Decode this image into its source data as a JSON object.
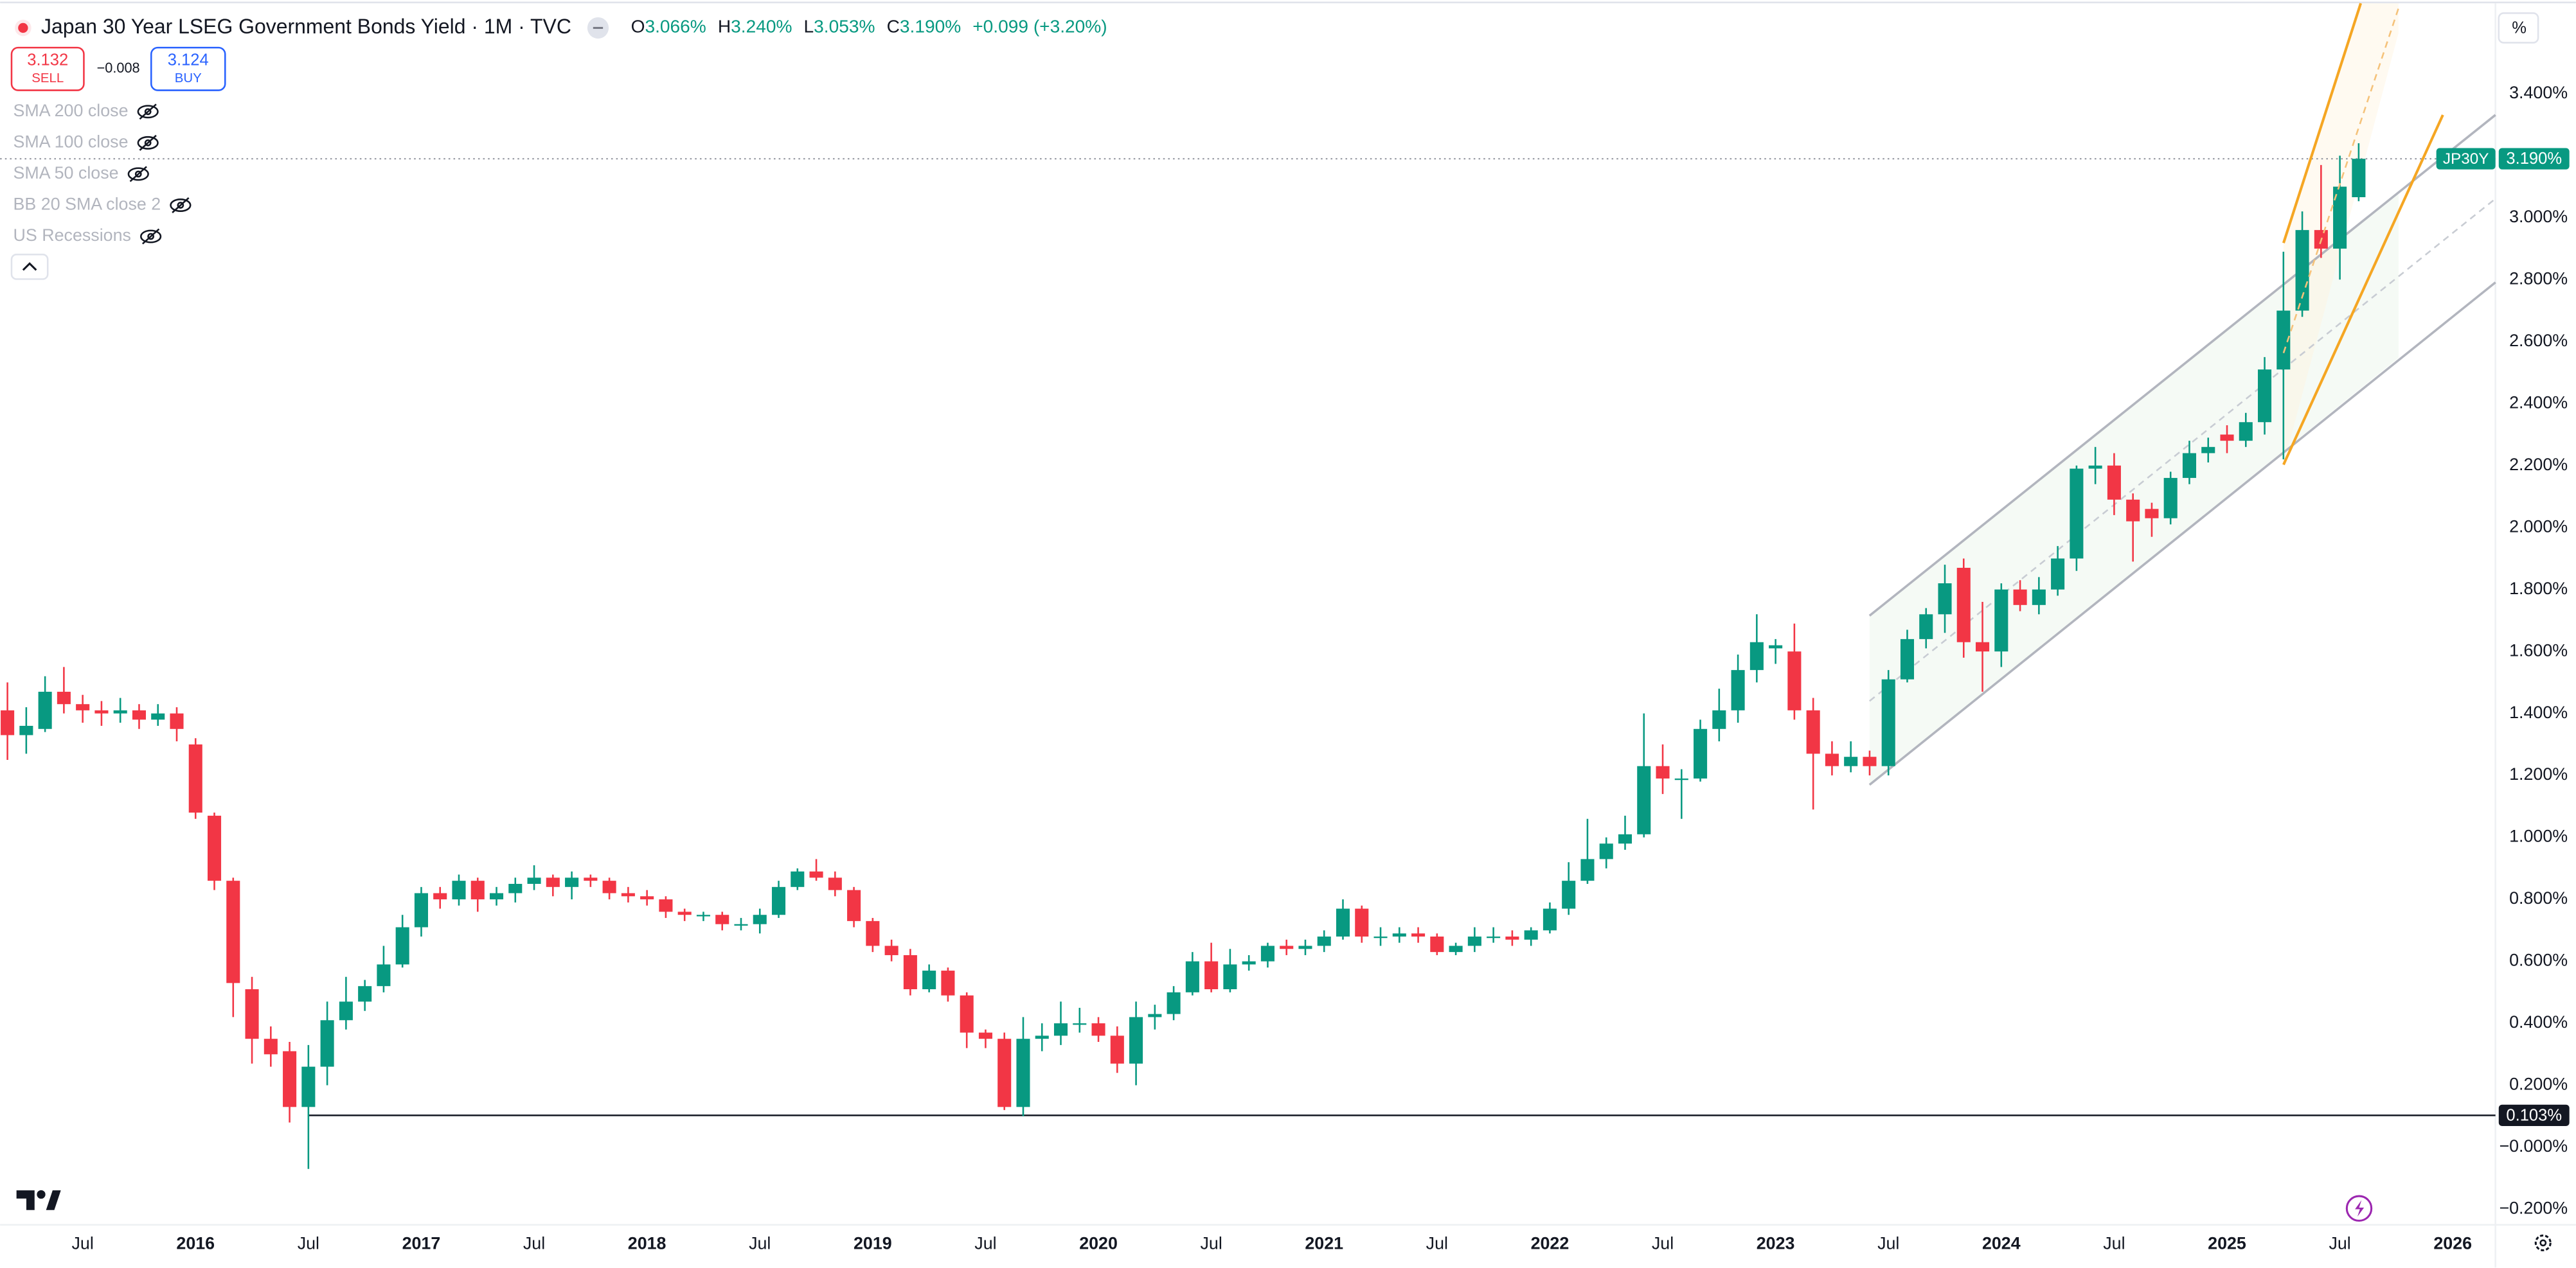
{
  "header": {
    "title": "Japan 30 Year LSEG Government Bonds Yield · 1M · TVC",
    "ohlc": [
      {
        "key": "O",
        "value": "3.066%"
      },
      {
        "key": "H",
        "value": "3.240%"
      },
      {
        "key": "L",
        "value": "3.053%"
      },
      {
        "key": "C",
        "value": "3.190%"
      }
    ],
    "change": "+0.099 (+3.20%)",
    "sell": {
      "price": "3.132",
      "label": "SELL"
    },
    "spread": "−0.008",
    "buy": {
      "price": "3.124",
      "label": "BUY"
    },
    "indicators": [
      "SMA 200 close",
      "SMA 100 close",
      "SMA 50 close",
      "BB 20 SMA close 2",
      "US Recessions"
    ]
  },
  "chart_data": {
    "type": "candlestick",
    "symbol": "JP30Y",
    "y_unit": "%",
    "up_color": "#089981",
    "down_color": "#f23645",
    "grid": false,
    "x": [
      "2015-03",
      "2015-04",
      "2015-05",
      "2015-06",
      "2015-07",
      "2015-08",
      "2015-09",
      "2015-10",
      "2015-11",
      "2015-12",
      "2016-01",
      "2016-02",
      "2016-03",
      "2016-04",
      "2016-05",
      "2016-06",
      "2016-07",
      "2016-08",
      "2016-09",
      "2016-10",
      "2016-11",
      "2016-12",
      "2017-01",
      "2017-02",
      "2017-03",
      "2017-04",
      "2017-05",
      "2017-06",
      "2017-07",
      "2017-08",
      "2017-09",
      "2017-10",
      "2017-11",
      "2017-12",
      "2018-01",
      "2018-02",
      "2018-03",
      "2018-04",
      "2018-05",
      "2018-06",
      "2018-07",
      "2018-08",
      "2018-09",
      "2018-10",
      "2018-11",
      "2018-12",
      "2019-01",
      "2019-02",
      "2019-03",
      "2019-04",
      "2019-05",
      "2019-06",
      "2019-07",
      "2019-08",
      "2019-09",
      "2019-10",
      "2019-11",
      "2019-12",
      "2020-01",
      "2020-02",
      "2020-03",
      "2020-04",
      "2020-05",
      "2020-06",
      "2020-07",
      "2020-08",
      "2020-09",
      "2020-10",
      "2020-11",
      "2020-12",
      "2021-01",
      "2021-02",
      "2021-03",
      "2021-04",
      "2021-05",
      "2021-06",
      "2021-07",
      "2021-08",
      "2021-09",
      "2021-10",
      "2021-11",
      "2021-12",
      "2022-01",
      "2022-02",
      "2022-03",
      "2022-04",
      "2022-05",
      "2022-06",
      "2022-07",
      "2022-08",
      "2022-09",
      "2022-10",
      "2022-11",
      "2022-12",
      "2023-01",
      "2023-02",
      "2023-03",
      "2023-04",
      "2023-05",
      "2023-06",
      "2023-07",
      "2023-08",
      "2023-09",
      "2023-10",
      "2023-11",
      "2023-12",
      "2024-01",
      "2024-02",
      "2024-03",
      "2024-04",
      "2024-05",
      "2024-06",
      "2024-07",
      "2024-08",
      "2024-09",
      "2024-10",
      "2024-11",
      "2024-12",
      "2025-01",
      "2025-02",
      "2025-03",
      "2025-04",
      "2025-05",
      "2025-06",
      "2025-07",
      "2025-08"
    ],
    "open": [
      1.41,
      1.33,
      1.35,
      1.47,
      1.43,
      1.41,
      1.4,
      1.41,
      1.38,
      1.4,
      1.3,
      1.07,
      0.86,
      0.51,
      0.35,
      0.31,
      0.13,
      0.26,
      0.41,
      0.47,
      0.52,
      0.59,
      0.71,
      0.82,
      0.8,
      0.86,
      0.8,
      0.82,
      0.85,
      0.87,
      0.84,
      0.87,
      0.86,
      0.82,
      0.81,
      0.8,
      0.76,
      0.75,
      0.75,
      0.72,
      0.72,
      0.75,
      0.84,
      0.89,
      0.87,
      0.83,
      0.73,
      0.65,
      0.62,
      0.51,
      0.57,
      0.49,
      0.37,
      0.35,
      0.13,
      0.35,
      0.36,
      0.4,
      0.4,
      0.36,
      0.27,
      0.42,
      0.43,
      0.5,
      0.6,
      0.51,
      0.59,
      0.6,
      0.65,
      0.64,
      0.65,
      0.68,
      0.77,
      0.68,
      0.68,
      0.69,
      0.68,
      0.63,
      0.65,
      0.68,
      0.68,
      0.67,
      0.7,
      0.77,
      0.86,
      0.93,
      0.98,
      1.01,
      1.23,
      1.19,
      1.19,
      1.35,
      1.41,
      1.54,
      1.61,
      1.6,
      1.41,
      1.27,
      1.23,
      1.26,
      1.23,
      1.51,
      1.64,
      1.72,
      1.87,
      1.63,
      1.6,
      1.8,
      1.75,
      1.8,
      1.9,
      2.19,
      2.2,
      2.09,
      2.06,
      2.03,
      2.16,
      2.24,
      2.3,
      2.28,
      2.34,
      2.51,
      2.7,
      2.96,
      2.9,
      3.066
    ],
    "high": [
      1.5,
      1.42,
      1.52,
      1.55,
      1.46,
      1.44,
      1.45,
      1.43,
      1.43,
      1.42,
      1.32,
      1.08,
      0.87,
      0.55,
      0.39,
      0.34,
      0.33,
      0.47,
      0.55,
      0.54,
      0.65,
      0.75,
      0.84,
      0.84,
      0.88,
      0.87,
      0.84,
      0.87,
      0.91,
      0.88,
      0.89,
      0.88,
      0.87,
      0.84,
      0.83,
      0.81,
      0.77,
      0.76,
      0.76,
      0.74,
      0.77,
      0.86,
      0.9,
      0.93,
      0.89,
      0.84,
      0.74,
      0.67,
      0.64,
      0.59,
      0.58,
      0.5,
      0.38,
      0.37,
      0.42,
      0.4,
      0.47,
      0.45,
      0.42,
      0.39,
      0.47,
      0.46,
      0.52,
      0.63,
      0.66,
      0.64,
      0.62,
      0.66,
      0.67,
      0.67,
      0.7,
      0.8,
      0.78,
      0.71,
      0.71,
      0.71,
      0.69,
      0.66,
      0.71,
      0.71,
      0.7,
      0.71,
      0.79,
      0.92,
      1.06,
      1.0,
      1.07,
      1.4,
      1.3,
      1.22,
      1.38,
      1.48,
      1.59,
      1.72,
      1.64,
      1.69,
      1.45,
      1.31,
      1.31,
      1.28,
      1.54,
      1.67,
      1.74,
      1.88,
      1.9,
      1.76,
      1.82,
      1.83,
      1.84,
      1.94,
      2.2,
      2.26,
      2.24,
      2.11,
      2.08,
      2.18,
      2.28,
      2.29,
      2.33,
      2.37,
      2.55,
      2.89,
      3.02,
      3.17,
      3.2,
      3.24
    ],
    "low": [
      1.25,
      1.27,
      1.34,
      1.4,
      1.37,
      1.36,
      1.37,
      1.35,
      1.36,
      1.31,
      1.06,
      0.83,
      0.42,
      0.27,
      0.26,
      0.08,
      -0.07,
      0.2,
      0.38,
      0.44,
      0.5,
      0.58,
      0.68,
      0.77,
      0.78,
      0.76,
      0.78,
      0.79,
      0.83,
      0.81,
      0.8,
      0.84,
      0.8,
      0.79,
      0.78,
      0.74,
      0.73,
      0.73,
      0.7,
      0.7,
      0.69,
      0.74,
      0.83,
      0.86,
      0.81,
      0.71,
      0.63,
      0.6,
      0.49,
      0.5,
      0.47,
      0.32,
      0.32,
      0.12,
      0.1,
      0.31,
      0.33,
      0.37,
      0.34,
      0.24,
      0.2,
      0.38,
      0.41,
      0.49,
      0.5,
      0.5,
      0.57,
      0.58,
      0.62,
      0.62,
      0.63,
      0.67,
      0.66,
      0.65,
      0.66,
      0.66,
      0.62,
      0.62,
      0.63,
      0.66,
      0.65,
      0.65,
      0.69,
      0.75,
      0.85,
      0.9,
      0.96,
      1.0,
      1.14,
      1.06,
      1.18,
      1.31,
      1.37,
      1.5,
      1.56,
      1.38,
      1.09,
      1.2,
      1.21,
      1.2,
      1.2,
      1.5,
      1.61,
      1.66,
      1.58,
      1.47,
      1.55,
      1.73,
      1.72,
      1.78,
      1.86,
      2.14,
      2.04,
      1.89,
      1.97,
      2.01,
      2.14,
      2.21,
      2.24,
      2.26,
      2.3,
      2.22,
      2.68,
      2.87,
      2.8,
      3.053
    ],
    "close": [
      1.33,
      1.36,
      1.47,
      1.43,
      1.41,
      1.4,
      1.41,
      1.38,
      1.4,
      1.35,
      1.08,
      0.86,
      0.53,
      0.35,
      0.3,
      0.13,
      0.26,
      0.41,
      0.47,
      0.52,
      0.59,
      0.71,
      0.82,
      0.8,
      0.86,
      0.8,
      0.82,
      0.85,
      0.87,
      0.84,
      0.87,
      0.86,
      0.82,
      0.81,
      0.8,
      0.76,
      0.75,
      0.75,
      0.72,
      0.72,
      0.75,
      0.84,
      0.89,
      0.87,
      0.83,
      0.73,
      0.65,
      0.62,
      0.51,
      0.57,
      0.49,
      0.37,
      0.35,
      0.13,
      0.35,
      0.36,
      0.4,
      0.4,
      0.36,
      0.27,
      0.42,
      0.43,
      0.5,
      0.6,
      0.51,
      0.59,
      0.6,
      0.65,
      0.64,
      0.65,
      0.68,
      0.77,
      0.68,
      0.68,
      0.69,
      0.68,
      0.63,
      0.65,
      0.68,
      0.68,
      0.67,
      0.7,
      0.77,
      0.86,
      0.93,
      0.98,
      1.01,
      1.23,
      1.19,
      1.19,
      1.35,
      1.41,
      1.54,
      1.63,
      1.62,
      1.41,
      1.27,
      1.23,
      1.26,
      1.23,
      1.51,
      1.64,
      1.72,
      1.82,
      1.63,
      1.6,
      1.8,
      1.75,
      1.8,
      1.9,
      2.19,
      2.2,
      2.09,
      2.02,
      2.03,
      2.16,
      2.24,
      2.26,
      2.28,
      2.34,
      2.51,
      2.7,
      2.96,
      2.9,
      3.1,
      3.19
    ],
    "xlim": [
      "2015-03",
      "2026-03"
    ],
    "ylim": [
      -0.245,
      3.66
    ],
    "xticks": [
      {
        "value": "2015-07",
        "label": "Jul"
      },
      {
        "value": "2016-01",
        "label": "2016"
      },
      {
        "value": "2016-07",
        "label": "Jul"
      },
      {
        "value": "2017-01",
        "label": "2017"
      },
      {
        "value": "2017-07",
        "label": "Jul"
      },
      {
        "value": "2018-01",
        "label": "2018"
      },
      {
        "value": "2018-07",
        "label": "Jul"
      },
      {
        "value": "2019-01",
        "label": "2019"
      },
      {
        "value": "2019-07",
        "label": "Jul"
      },
      {
        "value": "2020-01",
        "label": "2020"
      },
      {
        "value": "2020-07",
        "label": "Jul"
      },
      {
        "value": "2021-01",
        "label": "2021"
      },
      {
        "value": "2021-07",
        "label": "Jul"
      },
      {
        "value": "2022-01",
        "label": "2022"
      },
      {
        "value": "2022-07",
        "label": "Jul"
      },
      {
        "value": "2023-01",
        "label": "2023"
      },
      {
        "value": "2023-07",
        "label": "Jul"
      },
      {
        "value": "2024-01",
        "label": "2024"
      },
      {
        "value": "2024-07",
        "label": "Jul"
      },
      {
        "value": "2025-01",
        "label": "2025"
      },
      {
        "value": "2025-07",
        "label": "Jul"
      },
      {
        "value": "2026-01",
        "label": "2026"
      }
    ],
    "yticks": [
      {
        "value": -0.2,
        "label": "−0.200%"
      },
      {
        "value": 0,
        "label": "−0.000%"
      },
      {
        "value": 0.2,
        "label": "0.200%"
      },
      {
        "value": 0.4,
        "label": "0.400%"
      },
      {
        "value": 0.6,
        "label": "0.600%"
      },
      {
        "value": 0.8,
        "label": "0.800%"
      },
      {
        "value": 1.0,
        "label": "1.000%"
      },
      {
        "value": 1.2,
        "label": "1.200%"
      },
      {
        "value": 1.4,
        "label": "1.400%"
      },
      {
        "value": 1.6,
        "label": "1.600%"
      },
      {
        "value": 1.8,
        "label": "1.800%"
      },
      {
        "value": 2.0,
        "label": "2.000%"
      },
      {
        "value": 2.2,
        "label": "2.200%"
      },
      {
        "value": 2.4,
        "label": "2.400%"
      },
      {
        "value": 2.6,
        "label": "2.600%"
      },
      {
        "value": 2.8,
        "label": "2.800%"
      },
      {
        "value": 3.0,
        "label": "3.000%"
      },
      {
        "value": 3.2,
        "label": "3.200%"
      },
      {
        "value": 3.4,
        "label": "3.400%"
      }
    ],
    "hlines": [
      {
        "value": 3.19,
        "label": "3.190%",
        "style": "dotted"
      },
      {
        "value": 0.103,
        "label": "0.103%",
        "style": "solid"
      }
    ]
  }
}
